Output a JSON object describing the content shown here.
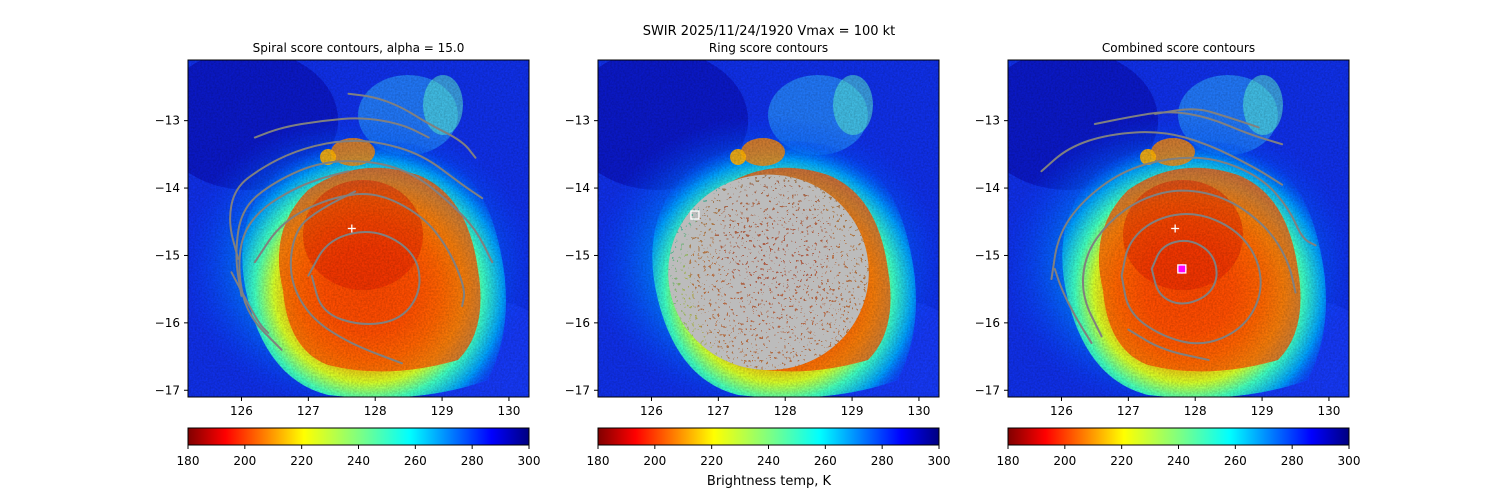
{
  "figure": {
    "suptitle": "SWIR  2025/11/24/1920    Vmax = 100 kt",
    "colorbar_label": "Brightness temp, K"
  },
  "chart_data": [
    {
      "type": "heatmap",
      "title": "Spiral score contours, alpha = 15.0",
      "xlim": [
        125.2,
        130.3
      ],
      "ylim": [
        -17.1,
        -12.1
      ],
      "xticks": [
        126,
        127,
        128,
        129,
        130
      ],
      "yticks": [
        -13,
        -14,
        -15,
        -16,
        -17
      ],
      "colorbar": {
        "cmap": "jet_r",
        "range": [
          180,
          300
        ],
        "ticks": [
          180,
          200,
          220,
          240,
          260,
          280,
          300
        ]
      },
      "contour_color": "#808080",
      "contours": [
        [
          [
            126.2,
            -15.1
          ],
          [
            126.6,
            -14.5
          ],
          [
            127.3,
            -14.15
          ],
          [
            128.0,
            -14.05
          ],
          [
            128.7,
            -14.4
          ],
          [
            129.1,
            -14.9
          ],
          [
            129.35,
            -15.5
          ],
          [
            129.3,
            -15.75
          ]
        ],
        [
          [
            127.0,
            -15.3
          ],
          [
            127.3,
            -14.75
          ],
          [
            128.0,
            -14.6
          ],
          [
            128.6,
            -14.95
          ],
          [
            128.7,
            -15.5
          ],
          [
            128.4,
            -15.95
          ],
          [
            127.8,
            -16.05
          ],
          [
            127.2,
            -15.85
          ],
          [
            127.05,
            -15.3
          ]
        ],
        [
          [
            126.0,
            -15.6
          ],
          [
            125.9,
            -15.0
          ],
          [
            126.0,
            -14.3
          ],
          [
            126.5,
            -13.9
          ],
          [
            127.2,
            -13.6
          ],
          [
            128.0,
            -13.6
          ],
          [
            128.6,
            -13.8
          ],
          [
            129.1,
            -14.2
          ],
          [
            129.5,
            -14.6
          ],
          [
            129.75,
            -15.1
          ]
        ],
        [
          [
            125.95,
            -15.05
          ],
          [
            125.8,
            -14.5
          ],
          [
            125.9,
            -14.0
          ],
          [
            126.3,
            -13.7
          ],
          [
            126.8,
            -13.45
          ],
          [
            127.4,
            -13.3
          ],
          [
            128.0,
            -13.3
          ],
          [
            128.7,
            -13.5
          ],
          [
            129.3,
            -13.95
          ],
          [
            129.6,
            -14.15
          ]
        ],
        [
          [
            126.6,
            -16.4
          ],
          [
            126.1,
            -15.9
          ],
          [
            125.95,
            -15.3
          ],
          [
            126.0,
            -14.7
          ],
          [
            126.3,
            -14.3
          ],
          [
            126.8,
            -14.0
          ],
          [
            127.2,
            -13.85
          ],
          [
            127.6,
            -13.75
          ]
        ],
        [
          [
            128.4,
            -16.6
          ],
          [
            127.6,
            -16.3
          ],
          [
            127.0,
            -15.9
          ],
          [
            126.7,
            -15.3
          ],
          [
            126.8,
            -14.6
          ],
          [
            127.2,
            -14.3
          ],
          [
            127.7,
            -14.05
          ]
        ],
        [
          [
            126.2,
            -13.25
          ],
          [
            126.6,
            -13.1
          ],
          [
            127.2,
            -13.0
          ],
          [
            127.8,
            -12.95
          ],
          [
            128.4,
            -13.05
          ],
          [
            128.8,
            -13.25
          ]
        ],
        [
          [
            127.6,
            -12.6
          ],
          [
            128.0,
            -12.65
          ],
          [
            128.4,
            -12.8
          ],
          [
            128.8,
            -13.05
          ],
          [
            129.3,
            -13.3
          ],
          [
            129.5,
            -13.55
          ]
        ],
        [
          [
            125.85,
            -15.25
          ],
          [
            126.25,
            -16.0
          ],
          [
            126.4,
            -16.15
          ]
        ]
      ],
      "markers": [
        {
          "kind": "plus",
          "x": 127.65,
          "y": -14.6,
          "color": "#ffffff"
        }
      ]
    },
    {
      "type": "heatmap",
      "title": "Ring score contours",
      "xlim": [
        125.2,
        130.3
      ],
      "ylim": [
        -17.1,
        -12.1
      ],
      "xticks": [
        126,
        127,
        128,
        129,
        130
      ],
      "yticks": [
        -13,
        -14,
        -15,
        -16,
        -17
      ],
      "colorbar": {
        "cmap": "jet_r",
        "range": [
          180,
          300
        ],
        "ticks": [
          180,
          200,
          220,
          240,
          260,
          280,
          300
        ]
      },
      "contour_color": "#808080",
      "ring_region": {
        "cx": 127.75,
        "cy": -15.25,
        "rx": 1.5,
        "ry": 1.45
      },
      "contours": [],
      "markers": [
        {
          "kind": "square",
          "x": 126.65,
          "y": -14.4,
          "color": "#ffffff"
        }
      ]
    },
    {
      "type": "heatmap",
      "title": "Combined score contours",
      "xlim": [
        125.2,
        130.3
      ],
      "ylim": [
        -17.1,
        -12.1
      ],
      "xticks": [
        126,
        127,
        128,
        129,
        130
      ],
      "yticks": [
        -13,
        -14,
        -15,
        -16,
        -17
      ],
      "colorbar": {
        "cmap": "jet_r",
        "range": [
          180,
          300
        ],
        "ticks": [
          180,
          200,
          220,
          240,
          260,
          280,
          300
        ]
      },
      "contour_color": "#808080",
      "contours": [
        [
          [
            127.35,
            -15.2
          ],
          [
            127.5,
            -14.85
          ],
          [
            127.9,
            -14.75
          ],
          [
            128.25,
            -14.95
          ],
          [
            128.35,
            -15.3
          ],
          [
            128.2,
            -15.6
          ],
          [
            127.8,
            -15.75
          ],
          [
            127.45,
            -15.6
          ],
          [
            127.35,
            -15.2
          ]
        ],
        [
          [
            126.9,
            -15.3
          ],
          [
            127.0,
            -14.8
          ],
          [
            127.4,
            -14.45
          ],
          [
            128.0,
            -14.35
          ],
          [
            128.6,
            -14.6
          ],
          [
            128.95,
            -15.05
          ],
          [
            129.0,
            -15.6
          ],
          [
            128.7,
            -16.1
          ],
          [
            128.1,
            -16.35
          ],
          [
            127.5,
            -16.2
          ],
          [
            127.0,
            -15.85
          ],
          [
            126.9,
            -15.3
          ]
        ],
        [
          [
            126.6,
            -16.2
          ],
          [
            126.3,
            -15.6
          ],
          [
            126.35,
            -15.0
          ],
          [
            126.7,
            -14.5
          ],
          [
            127.2,
            -14.15
          ],
          [
            127.8,
            -14.0
          ],
          [
            128.5,
            -14.15
          ],
          [
            129.1,
            -14.6
          ],
          [
            129.4,
            -15.1
          ],
          [
            129.5,
            -15.55
          ]
        ],
        [
          [
            125.85,
            -15.35
          ],
          [
            125.95,
            -14.7
          ],
          [
            126.3,
            -14.2
          ],
          [
            126.9,
            -13.75
          ],
          [
            127.6,
            -13.55
          ],
          [
            128.3,
            -13.55
          ],
          [
            129.0,
            -13.85
          ],
          [
            129.4,
            -14.3
          ],
          [
            129.6,
            -14.75
          ],
          [
            129.8,
            -14.85
          ]
        ],
        [
          [
            125.7,
            -13.75
          ],
          [
            126.1,
            -13.4
          ],
          [
            126.7,
            -13.2
          ],
          [
            127.5,
            -13.15
          ],
          [
            128.2,
            -13.35
          ],
          [
            128.9,
            -13.7
          ],
          [
            129.3,
            -13.95
          ]
        ],
        [
          [
            126.5,
            -13.05
          ],
          [
            127.0,
            -12.95
          ],
          [
            127.6,
            -12.85
          ],
          [
            128.2,
            -12.95
          ],
          [
            128.8,
            -13.2
          ],
          [
            129.3,
            -13.35
          ]
        ],
        [
          [
            127.4,
            -12.9
          ],
          [
            128.0,
            -12.8
          ],
          [
            128.5,
            -12.95
          ],
          [
            128.95,
            -13.1
          ]
        ],
        [
          [
            126.45,
            -16.3
          ],
          [
            126.2,
            -15.9
          ],
          [
            126.0,
            -15.5
          ],
          [
            125.9,
            -15.2
          ]
        ],
        [
          [
            128.2,
            -16.55
          ],
          [
            127.5,
            -16.4
          ],
          [
            127.0,
            -16.1
          ]
        ]
      ],
      "markers": [
        {
          "kind": "plus",
          "x": 127.7,
          "y": -14.6,
          "color": "#ffffff"
        },
        {
          "kind": "circle",
          "x": 127.8,
          "y": -15.2,
          "color": "#ff00ff"
        },
        {
          "kind": "square",
          "x": 127.8,
          "y": -15.2,
          "color": "#ffffff"
        }
      ]
    }
  ]
}
